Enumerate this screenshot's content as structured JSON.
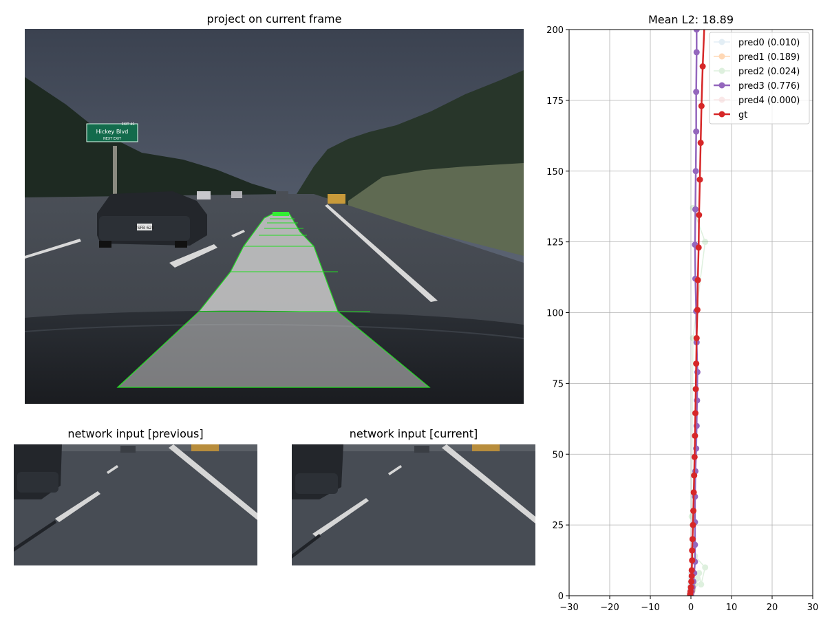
{
  "panels": {
    "main_title": "project on current frame",
    "prev_title": "network input [previous]",
    "curr_title": "network input [current]"
  },
  "scene": {
    "sign_text": "Hickey Blvd",
    "sign_subtext": "NEXT EXIT",
    "sign_exit": "EXIT 46",
    "plate_text": "7SFB 628",
    "path_color": "#c9c9c9",
    "path_edge_color": "#22dd22"
  },
  "chart_data": {
    "type": "line",
    "title": "Mean L2: 18.89",
    "xlim": [
      -30,
      30
    ],
    "ylim": [
      0,
      200
    ],
    "xticks": [
      -30,
      -20,
      -10,
      0,
      10,
      20,
      30
    ],
    "yticks": [
      0,
      25,
      50,
      75,
      100,
      125,
      150,
      175,
      200
    ],
    "grid": true,
    "legend_position": "top-right",
    "series": [
      {
        "name": "pred0 (0.010)",
        "color": "#1f77b4",
        "alpha": 0.12,
        "x": [
          -0.3,
          -0.3,
          -0.2,
          -0.2,
          -0.1,
          0.0,
          0.1
        ],
        "y": [
          0.3,
          1.0,
          2.0,
          3.2,
          4.6,
          6.2,
          8.0
        ]
      },
      {
        "name": "pred1 (0.189)",
        "color": "#ff7f0e",
        "alpha": 0.3,
        "x": [
          0.0,
          0.1,
          0.2,
          0.3,
          0.3,
          0.4,
          0.4
        ],
        "y": [
          0.3,
          0.7,
          1.2,
          1.8,
          2.4,
          3.0,
          3.7
        ]
      },
      {
        "name": "pred2 (0.024)",
        "color": "#2ca02c",
        "alpha": 0.15,
        "x": [
          0.0,
          0.5,
          1.0,
          1.5,
          2.0,
          2.5,
          3.5,
          1.0,
          0.5,
          0.2,
          0.5,
          3.5,
          0.5
        ],
        "y": [
          0.5,
          2.0,
          4.0,
          6.0,
          8.0,
          4.0,
          10.0,
          14.0,
          20.0,
          28.0,
          91.0,
          125.0,
          137.0
        ]
      },
      {
        "name": "pred3 (0.776)",
        "color": "#9467bd",
        "alpha": 1.0,
        "x": [
          0.0,
          0.2,
          0.4,
          0.6,
          0.8,
          1.0,
          1.0,
          1.0,
          1.0,
          1.1,
          1.3,
          1.4,
          1.5,
          1.6,
          1.4,
          1.3,
          1.1,
          1.0,
          1.1,
          1.2,
          1.3,
          1.3,
          1.4,
          1.4,
          1.4,
          1.3,
          0.9
        ],
        "y": [
          0.5,
          1.5,
          3.0,
          5.0,
          8.0,
          12.0,
          18.0,
          26.0,
          35.0,
          44.0,
          52.0,
          60.0,
          69.0,
          79.0,
          89.5,
          100.5,
          112.0,
          124.0,
          136.5,
          150.0,
          164.0,
          178.0,
          192.0,
          200.0,
          205.0,
          210.0,
          212.0
        ],
        "highlight": true
      },
      {
        "name": "pred4 (0.000)",
        "color": "#d62728",
        "alpha": 0.1,
        "x": [
          0.1,
          0.2,
          0.3,
          0.4
        ],
        "y": [
          0.3,
          0.9,
          1.5,
          2.2
        ]
      },
      {
        "name": "gt",
        "color": "#d62728",
        "alpha": 1.0,
        "x": [
          -0.2,
          -0.1,
          0.0,
          0.1,
          0.2,
          0.2,
          0.3,
          0.3,
          0.4,
          0.5,
          0.6,
          0.7,
          0.8,
          0.9,
          1.0,
          1.1,
          1.2,
          1.3,
          1.4,
          1.6,
          1.7,
          1.9,
          2.0,
          2.2,
          2.4,
          2.6,
          2.9,
          3.3,
          3.8
        ],
        "y": [
          0.5,
          1.5,
          3.0,
          5.0,
          7.0,
          9.0,
          12.5,
          16.0,
          20.0,
          25.0,
          30.0,
          36.5,
          42.5,
          49.0,
          56.5,
          64.5,
          73.0,
          82.0,
          91.0,
          101.0,
          111.5,
          123.0,
          134.5,
          147.0,
          160.0,
          173.0,
          187.0,
          201.0,
          215.0
        ],
        "highlight": true
      }
    ]
  }
}
